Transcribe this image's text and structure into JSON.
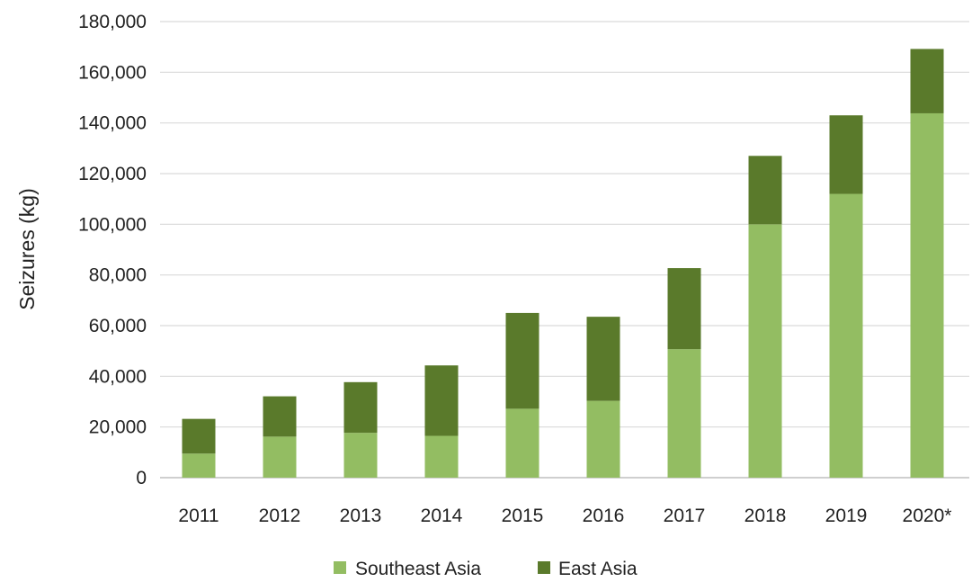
{
  "chart_data": {
    "type": "bar",
    "stacked": true,
    "categories": [
      "2011",
      "2012",
      "2013",
      "2014",
      "2015",
      "2016",
      "2017",
      "2018",
      "2019",
      "2020*"
    ],
    "series": [
      {
        "name": "Southeast Asia",
        "color": "#93bd62",
        "values": [
          9500,
          16200,
          17700,
          16500,
          27200,
          30300,
          50700,
          100000,
          112000,
          143800
        ]
      },
      {
        "name": "East Asia",
        "color": "#5a7a2b",
        "values": [
          13700,
          15900,
          20000,
          27800,
          37800,
          33200,
          32000,
          27000,
          31000,
          25400
        ]
      }
    ],
    "title": "",
    "xlabel": "",
    "ylabel": "Seizures (kg)",
    "ylim": [
      0,
      180000
    ],
    "yticks": [
      "0",
      "20,000",
      "40,000",
      "60,000",
      "80,000",
      "100,000",
      "120,000",
      "140,000",
      "160,000",
      "180,000"
    ],
    "ytick_values": [
      0,
      20000,
      40000,
      60000,
      80000,
      100000,
      120000,
      140000,
      160000,
      180000
    ],
    "grid": true,
    "legend_position": "bottom"
  }
}
